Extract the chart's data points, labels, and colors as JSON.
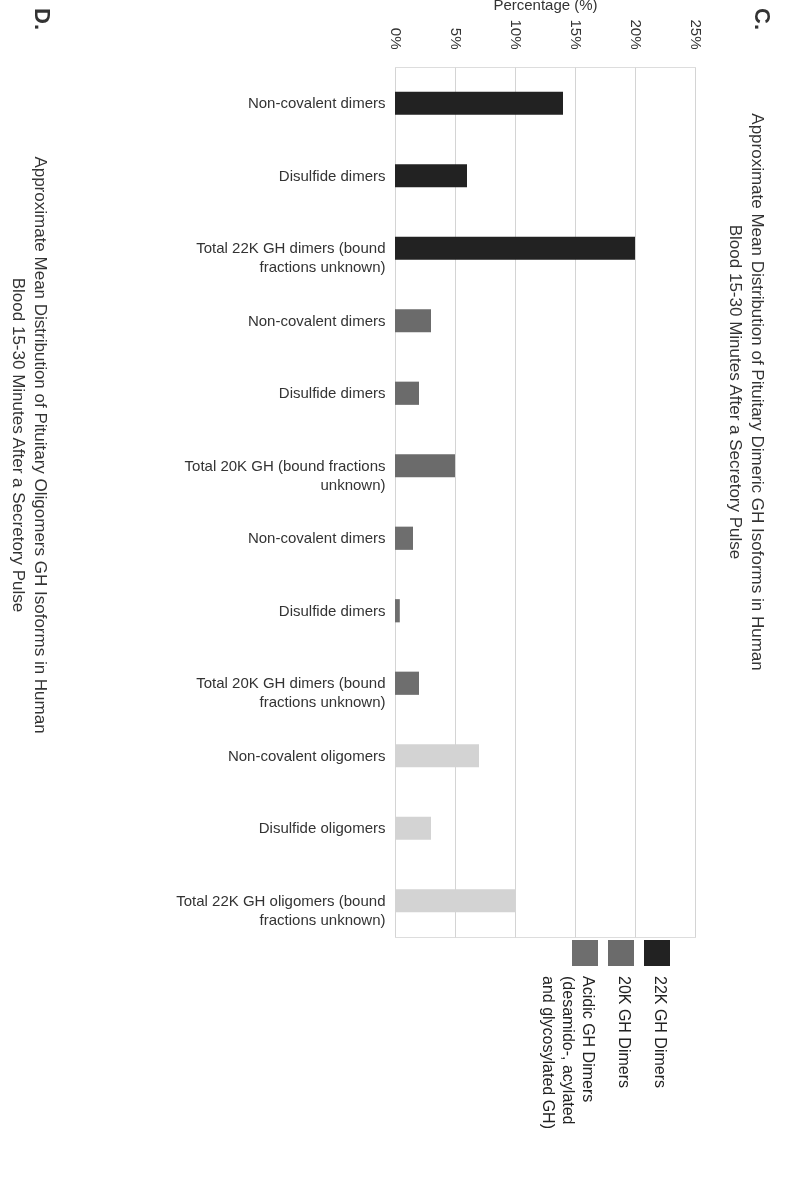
{
  "chart_data": {
    "type": "bar",
    "orientation": "horizontal",
    "title": "Approximate Mean Distribution of Pituitary Dimeric GH Isoforms in  Human Blood 15-30 Minutes After a Secretory Pulse",
    "annotations": [
      "C.",
      "D.",
      "Approximate Mean Distribution of Pituitary Oligomers GH Isoforms in  Human Blood 15-30 Minutes After a Secretory Pulse"
    ],
    "xlabel": "Percentage (%)",
    "categories": [
      "Non-covalent dimers",
      "Disulfide dimers",
      "Total 22K GH dimers (bound fractions unknown)",
      "Non-covalent dimers",
      "Disulfide dimers",
      "Total 20K GH (bound fractions unknown)",
      "Non-covalent dimers",
      "Disulfide dimers",
      "Total 20K GH dimers (bound fractions unknown)",
      "Non-covalent oligomers",
      "Disulfide oligomers",
      "Total 22K GH oligomers (bound fractions unknown)"
    ],
    "series": [
      {
        "name": "22K GH Dimers",
        "color": "#222222",
        "values": [
          14,
          6,
          20,
          null,
          null,
          null,
          null,
          null,
          null,
          null,
          null,
          null
        ]
      },
      {
        "name": "20K GH Dimers",
        "color": "#6b6b6b",
        "values": [
          null,
          null,
          null,
          3,
          2,
          5,
          null,
          null,
          null,
          null,
          null,
          null
        ]
      },
      {
        "name": "Acidic GH Dimers (desamido-, acylated and glycosylated GH)",
        "color": "#6e6e6e",
        "values": [
          null,
          null,
          null,
          null,
          null,
          null,
          1.5,
          0.4,
          2,
          null,
          null,
          null
        ]
      },
      {
        "color": "#d3d3d3",
        "values": [
          null,
          null,
          null,
          null,
          null,
          null,
          null,
          null,
          null,
          7,
          3,
          10
        ]
      }
    ],
    "xlim": [
      0,
      25
    ],
    "xticks": [
      {
        "value": 0,
        "label": "0%"
      },
      {
        "value": 5,
        "label": "5%"
      },
      {
        "value": 10,
        "label": "10%"
      },
      {
        "value": 15,
        "label": "15%"
      },
      {
        "value": 20,
        "label": "20%"
      },
      {
        "value": 25,
        "label": "25%"
      }
    ],
    "grid": "x",
    "legend": "bottom right"
  }
}
